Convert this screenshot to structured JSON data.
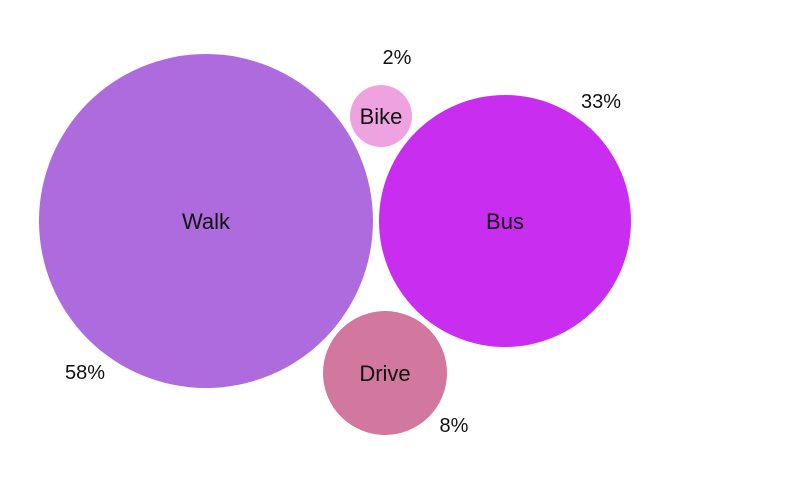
{
  "chart_data": {
    "type": "bubble",
    "categories": [
      "Walk",
      "Bus",
      "Drive",
      "Bike"
    ],
    "values": [
      58,
      33,
      8,
      2
    ],
    "value_labels": [
      "58%",
      "33%",
      "8%",
      "2%"
    ],
    "unit": "%",
    "colors": [
      "#ad6bdd",
      "#c92df0",
      "#d2779e",
      "#eea2e0"
    ],
    "title": "",
    "legend": "none"
  }
}
